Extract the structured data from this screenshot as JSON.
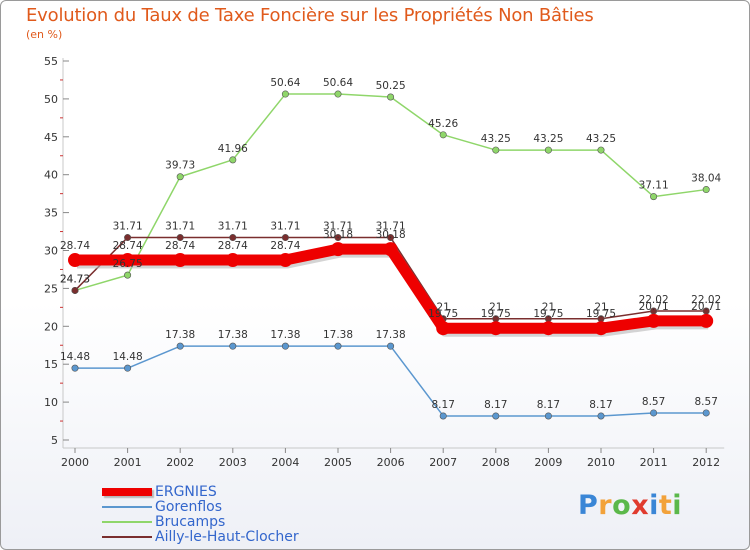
{
  "title": "Evolution du Taux de Taxe Foncière sur les Propriétés Non Bâties",
  "unit_label": "(en %)",
  "logo": {
    "letters": [
      "P",
      "r",
      "o",
      "x",
      "i",
      "t",
      "i"
    ],
    "colors": [
      "#3a86d6",
      "#f2a23a",
      "#5bb84a",
      "#e03b2e",
      "#3a86d6",
      "#f2a23a",
      "#5bb84a"
    ]
  },
  "chart_data": {
    "type": "line",
    "title": "Evolution du Taux de Taxe Foncière sur les Propriétés Non Bâties",
    "ylabel": "(en %)",
    "xlabel": "",
    "x": [
      "2000",
      "2001",
      "2002",
      "2003",
      "2004",
      "2005",
      "2006",
      "2007",
      "2008",
      "2009",
      "2010",
      "2011",
      "2012"
    ],
    "ylim": [
      5,
      55
    ],
    "yticks": [
      5,
      10,
      15,
      20,
      25,
      30,
      35,
      40,
      45,
      50,
      55
    ],
    "grid": false,
    "legend": "bottom-left",
    "series": [
      {
        "name": "ERGNIES",
        "color": "#ee0000",
        "highlight": true,
        "values": [
          28.74,
          28.74,
          28.74,
          28.74,
          28.74,
          30.18,
          30.18,
          19.75,
          19.75,
          19.75,
          19.75,
          20.71,
          20.71
        ],
        "labels": [
          "28.74",
          "28.74",
          "28.74",
          "28.74",
          "28.74",
          "30.18",
          "30.18",
          "19.75",
          "19.75",
          "19.75",
          "19.75",
          "20.71",
          "20.71"
        ]
      },
      {
        "name": "Gorenflos",
        "color": "#5b97cf",
        "highlight": false,
        "values": [
          14.48,
          14.48,
          17.38,
          17.38,
          17.38,
          17.38,
          17.38,
          8.17,
          8.17,
          8.17,
          8.17,
          8.57,
          8.57
        ],
        "labels": [
          "14.48",
          "14.48",
          "17.38",
          "17.38",
          "17.38",
          "17.38",
          "17.38",
          "8.17",
          "8.17",
          "8.17",
          "8.17",
          "8.57",
          "8.57"
        ]
      },
      {
        "name": "Brucamps",
        "color": "#8fd66a",
        "highlight": false,
        "values": [
          24.73,
          26.75,
          39.73,
          41.96,
          50.64,
          50.64,
          50.25,
          45.26,
          43.25,
          43.25,
          43.25,
          37.11,
          38.04
        ],
        "labels": [
          "24.73",
          "26.75",
          "39.73",
          "41.96",
          "50.64",
          "50.64",
          "50.25",
          "45.26",
          "43.25",
          "43.25",
          "43.25",
          "37.11",
          "38.04"
        ]
      },
      {
        "name": "Ailly-le-Haut-Clocher",
        "color": "#7a2e2e",
        "highlight": false,
        "values": [
          24.73,
          31.71,
          31.71,
          31.71,
          31.71,
          31.71,
          31.71,
          21,
          21,
          21,
          21,
          22.02,
          22.02
        ],
        "labels": [
          "24.73",
          "31.71",
          "31.71",
          "31.71",
          "31.71",
          "31.71",
          "31.71",
          "21",
          "21",
          "21",
          "21",
          "22.02",
          "22.02"
        ]
      }
    ]
  }
}
